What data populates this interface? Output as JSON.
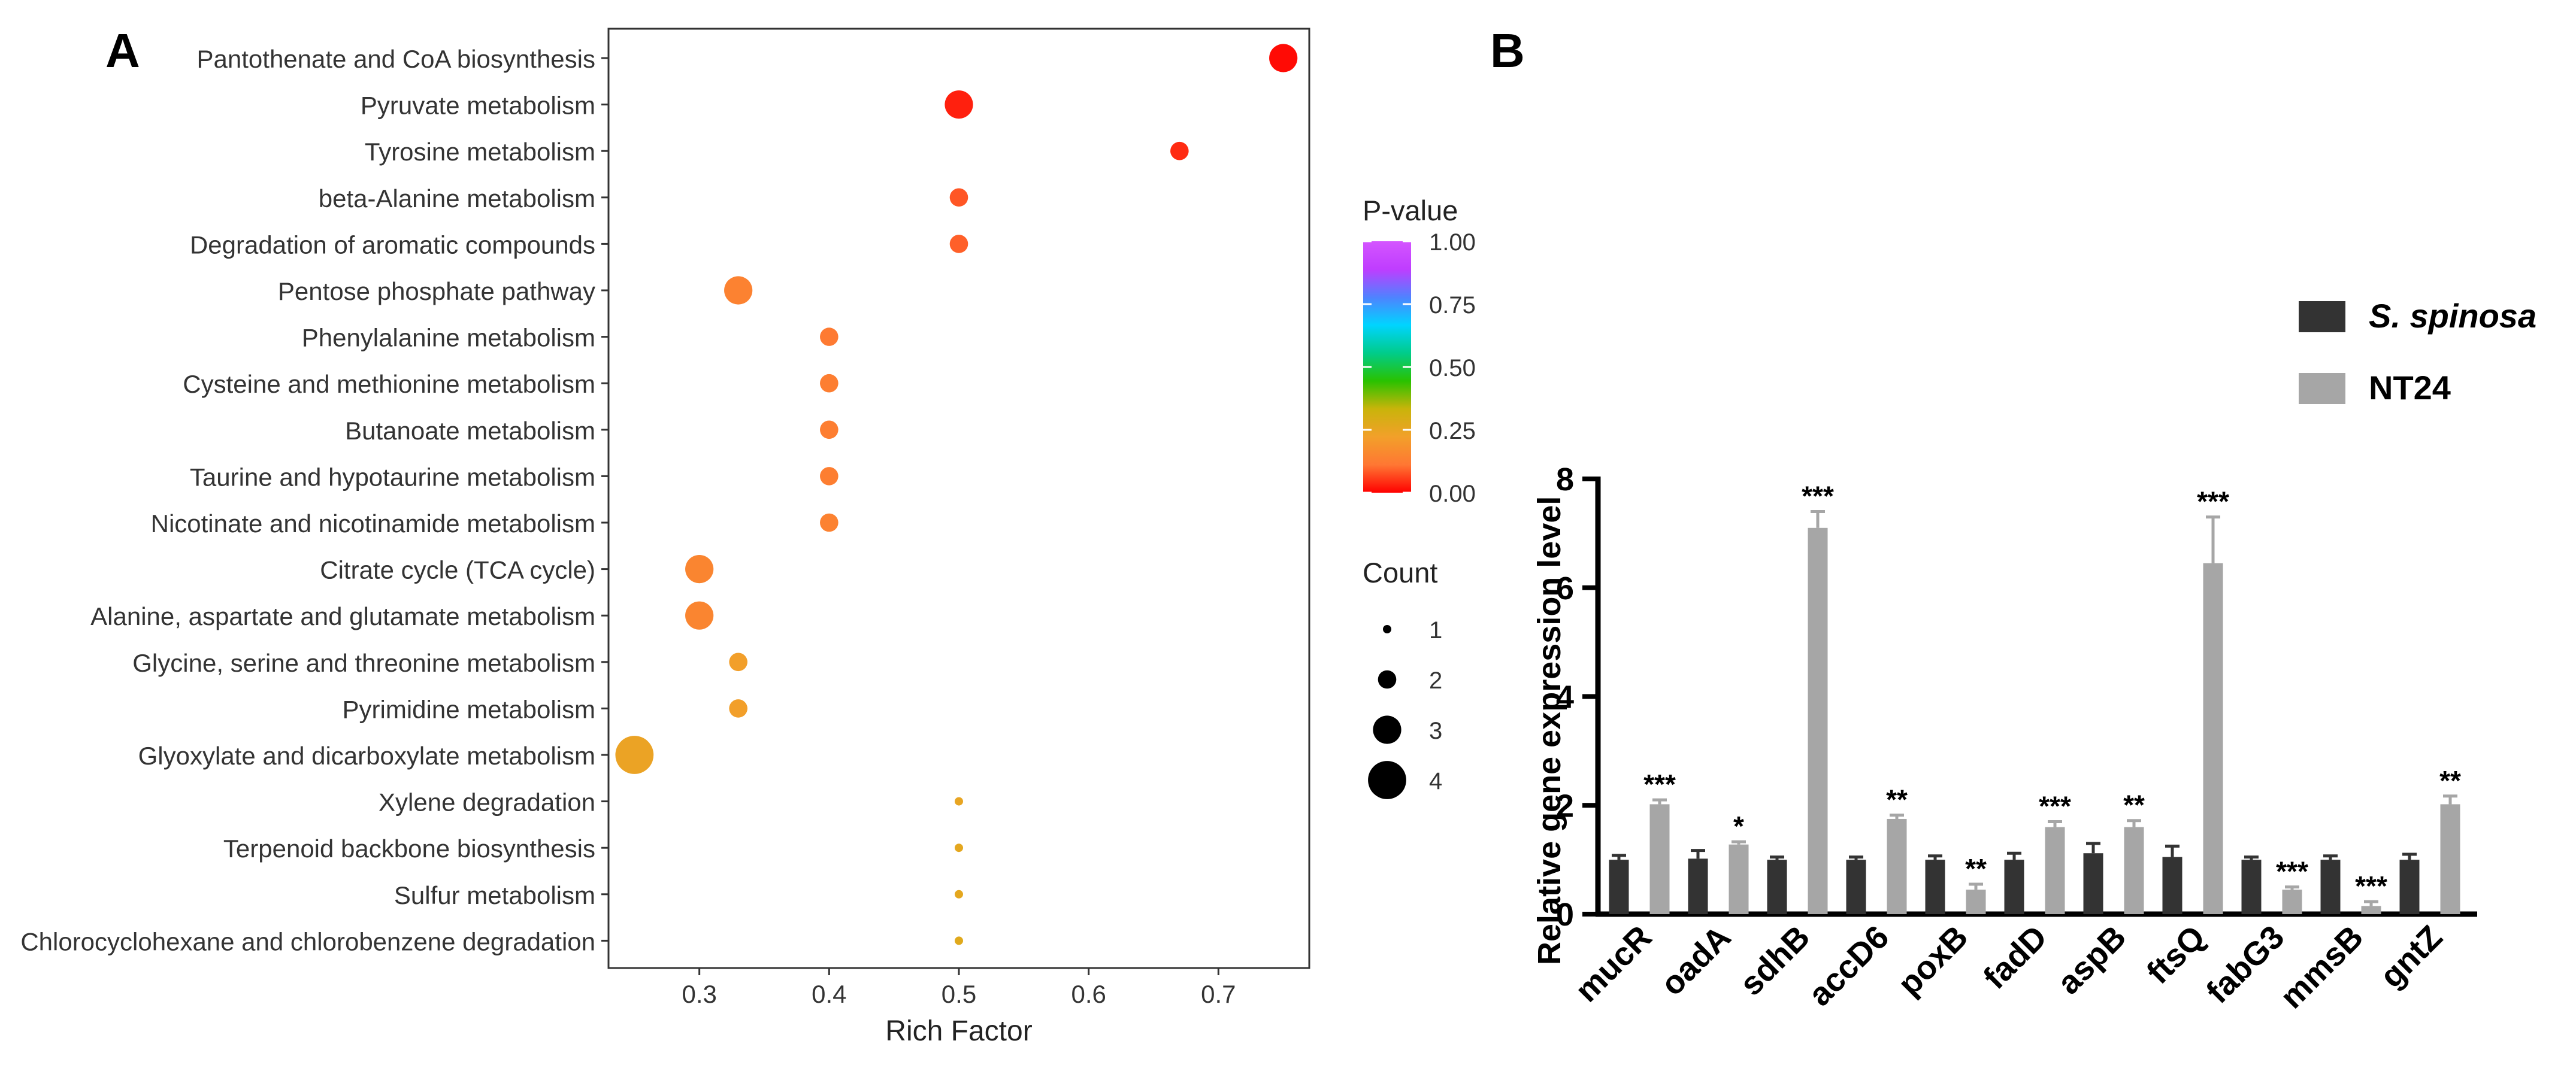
{
  "panels": {
    "a_letter": "A",
    "b_letter": "B"
  },
  "chart_data": [
    {
      "type": "scatter",
      "title": "",
      "xlabel": "Rich Factor",
      "ylabel": "",
      "xlim": [
        0.23,
        0.77
      ],
      "xticks": [
        "0.3",
        "0.4",
        "0.5",
        "0.6",
        "0.7"
      ],
      "grid": false,
      "categories": [
        "Pantothenate and CoA biosynthesis",
        "Pyruvate metabolism",
        "Tyrosine metabolism",
        "beta-Alanine metabolism",
        "Degradation of aromatic compounds",
        "Pentose phosphate pathway",
        "Phenylalanine metabolism",
        "Cysteine and methionine metabolism",
        "Butanoate metabolism",
        "Taurine and hypotaurine metabolism",
        "Nicotinate and nicotinamide metabolism",
        "Citrate cycle (TCA cycle)",
        "Alanine, aspartate and glutamate metabolism",
        "Glycine, serine and threonine metabolism",
        "Pyrimidine metabolism",
        "Glyoxylate and dicarboxylate metabolism",
        "Xylene degradation",
        "Terpenoid backbone biosynthesis",
        "Sulfur metabolism",
        "Chlorocyclohexane and chlorobenzene degradation"
      ],
      "rich_factor": [
        0.75,
        0.5,
        0.67,
        0.5,
        0.5,
        0.33,
        0.4,
        0.4,
        0.4,
        0.4,
        0.4,
        0.3,
        0.3,
        0.33,
        0.33,
        0.25,
        0.5,
        0.5,
        0.5,
        0.5
      ],
      "count": [
        3,
        3,
        2,
        2,
        2,
        3,
        2,
        2,
        2,
        2,
        2,
        3,
        3,
        2,
        2,
        4,
        1,
        1,
        1,
        1
      ],
      "p_value": [
        0.01,
        0.03,
        0.04,
        0.08,
        0.09,
        0.14,
        0.12,
        0.13,
        0.13,
        0.13,
        0.14,
        0.15,
        0.15,
        0.22,
        0.22,
        0.24,
        0.25,
        0.26,
        0.26,
        0.27
      ],
      "color_legend": {
        "title": "P-value",
        "ticks": [
          "1.00",
          "0.75",
          "0.50",
          "0.25",
          "0.00"
        ],
        "colors": [
          "#ff0000",
          "#ff7733",
          "#f2a02a",
          "#c9b40a",
          "#29c200",
          "#00cc8a",
          "#00d4ff",
          "#4f82ff",
          "#bf3dff",
          "#d455ff"
        ]
      },
      "size_legend": {
        "title": "Count",
        "values": [
          1,
          2,
          3,
          4
        ],
        "labels": [
          "1",
          "2",
          "3",
          "4"
        ]
      }
    },
    {
      "type": "bar",
      "title": "",
      "xlabel": "",
      "ylabel": "Relative gene expression level",
      "ylim": [
        0,
        8
      ],
      "yticks": [
        "0",
        "2",
        "4",
        "6",
        "8"
      ],
      "categories": [
        "mucR",
        "oadA",
        "sdhB",
        "accD6",
        "poxB",
        "fadD",
        "aspB",
        "ftsQ",
        "fabG3",
        "mmsB",
        "gntZ"
      ],
      "series": [
        {
          "name": "S. spinosa",
          "color": "#333333",
          "values": [
            1.0,
            1.02,
            1.0,
            1.0,
            1.0,
            1.0,
            1.12,
            1.05,
            1.0,
            1.0,
            1.0
          ],
          "errors": [
            0.08,
            0.15,
            0.05,
            0.05,
            0.07,
            0.12,
            0.18,
            0.2,
            0.05,
            0.07,
            0.1
          ]
        },
        {
          "name": "NT24",
          "color": "#a6a6a6",
          "values": [
            2.02,
            1.28,
            7.1,
            1.75,
            0.45,
            1.6,
            1.6,
            6.45,
            0.45,
            0.15,
            2.02
          ],
          "errors": [
            0.08,
            0.05,
            0.3,
            0.07,
            0.1,
            0.1,
            0.12,
            0.85,
            0.05,
            0.08,
            0.15
          ]
        }
      ],
      "significance": [
        "***",
        "*",
        "***",
        "**",
        "**",
        "***",
        "**",
        "***",
        "***",
        "***",
        "**"
      ]
    }
  ]
}
